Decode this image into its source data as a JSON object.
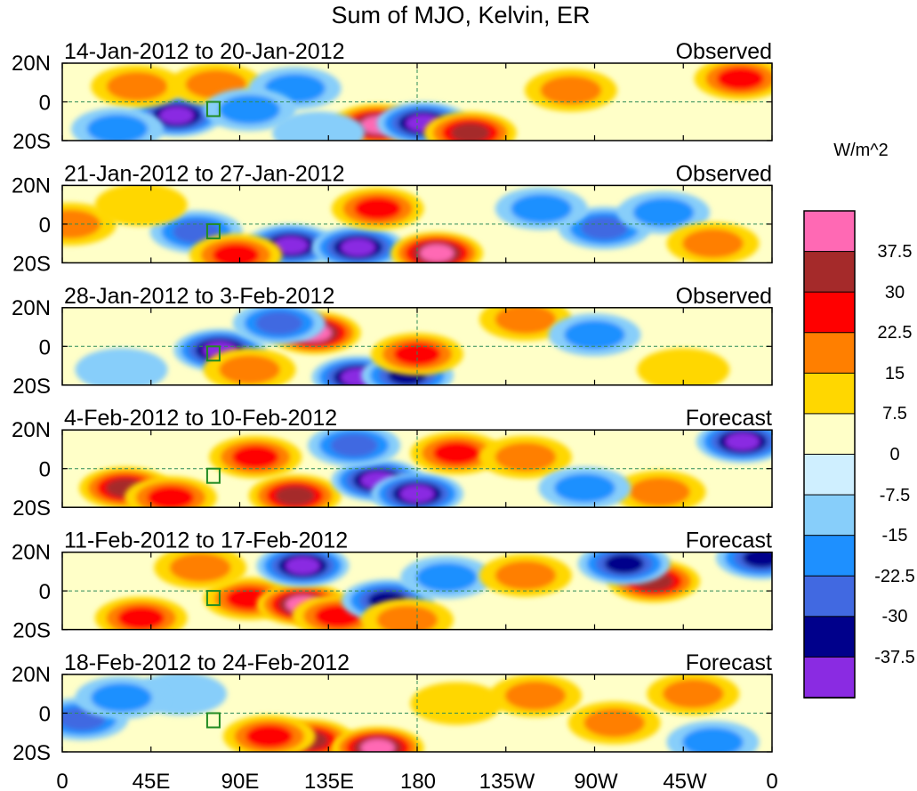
{
  "chart_data": {
    "type": "heatmap",
    "title": "Sum of MJO, Kelvin, ER",
    "colorbar": {
      "unit_label": "W/m^2",
      "levels": [
        -37.5,
        -30,
        -22.5,
        -15,
        -7.5,
        0,
        7.5,
        15,
        22.5,
        30,
        37.5
      ],
      "level_labels": [
        "-37.5",
        "-30",
        "-22.5",
        "-15",
        "-7.5",
        "0",
        "7.5",
        "15",
        "22.5",
        "30",
        "37.5"
      ],
      "colors": [
        "#8a2be2",
        "#00008b",
        "#4169e1",
        "#1e90ff",
        "#87cefa",
        "#cfefff",
        "#ffffc8",
        "#ffd700",
        "#ff7f00",
        "#ff0000",
        "#a52a2a",
        "#ff69b4"
      ]
    },
    "x_tick_labels": [
      "0",
      "45E",
      "90E",
      "135E",
      "180",
      "135W",
      "90W",
      "45W",
      "0"
    ],
    "y_tick_labels": [
      "20N",
      "0",
      "20S"
    ],
    "panels": [
      {
        "date_range": "14-Jan-2012 to 20-Jan-2012",
        "status": "Observed",
        "blobs": [
          {
            "lon": 58,
            "lat": -7,
            "value": -37.5
          },
          {
            "lon": 38,
            "lat": 8,
            "value": 15
          },
          {
            "lon": 78,
            "lat": 9,
            "value": 15
          },
          {
            "lon": 118,
            "lat": 7,
            "value": -15
          },
          {
            "lon": 160,
            "lat": -12,
            "value": 37.5
          },
          {
            "lon": 183,
            "lat": -11,
            "value": -37.5
          },
          {
            "lon": 207,
            "lat": -16,
            "value": 30
          },
          {
            "lon": 258,
            "lat": 6,
            "value": 15
          },
          {
            "lon": 344,
            "lat": 12,
            "value": 22.5
          },
          {
            "lon": 28,
            "lat": -14,
            "value": -15
          },
          {
            "lon": 95,
            "lat": -4,
            "value": -15
          },
          {
            "lon": 130,
            "lat": -16,
            "value": -7.5
          }
        ]
      },
      {
        "date_range": "21-Jan-2012 to 27-Jan-2012",
        "status": "Observed",
        "blobs": [
          {
            "lon": 68,
            "lat": -4,
            "value": -22.5
          },
          {
            "lon": 116,
            "lat": -11,
            "value": -37.5
          },
          {
            "lon": 150,
            "lat": -12,
            "value": -37.5
          },
          {
            "lon": 160,
            "lat": 8,
            "value": 22.5
          },
          {
            "lon": 190,
            "lat": -15,
            "value": 37.5
          },
          {
            "lon": 275,
            "lat": -2,
            "value": -22.5
          },
          {
            "lon": 305,
            "lat": 6,
            "value": -15
          },
          {
            "lon": 330,
            "lat": -10,
            "value": 15
          },
          {
            "lon": 4,
            "lat": 0,
            "value": 15
          },
          {
            "lon": 88,
            "lat": -16,
            "value": 22.5
          },
          {
            "lon": 243,
            "lat": 8,
            "value": -15
          },
          {
            "lon": 40,
            "lat": 10,
            "value": 7.5
          }
        ]
      },
      {
        "date_range": "28-Jan-2012 to 3-Feb-2012",
        "status": "Observed",
        "blobs": [
          {
            "lon": 80,
            "lat": -2,
            "value": -37.5
          },
          {
            "lon": 128,
            "lat": 7,
            "value": 37.5
          },
          {
            "lon": 150,
            "lat": -16,
            "value": -37.5
          },
          {
            "lon": 175,
            "lat": -15,
            "value": -30
          },
          {
            "lon": 180,
            "lat": -4,
            "value": 22.5
          },
          {
            "lon": 235,
            "lat": 14,
            "value": 15
          },
          {
            "lon": 95,
            "lat": -12,
            "value": 15
          },
          {
            "lon": 270,
            "lat": 6,
            "value": -15
          },
          {
            "lon": 30,
            "lat": -12,
            "value": -7.5
          },
          {
            "lon": 110,
            "lat": 12,
            "value": -22.5
          },
          {
            "lon": 315,
            "lat": -12,
            "value": 7.5
          }
        ]
      },
      {
        "date_range": "4-Feb-2012 to 10-Feb-2012",
        "status": "Forecast",
        "blobs": [
          {
            "lon": 32,
            "lat": -10,
            "value": 30
          },
          {
            "lon": 55,
            "lat": -15,
            "value": 22.5
          },
          {
            "lon": 98,
            "lat": 6,
            "value": 22.5
          },
          {
            "lon": 118,
            "lat": -14,
            "value": 30
          },
          {
            "lon": 160,
            "lat": -6,
            "value": -37.5
          },
          {
            "lon": 180,
            "lat": -13,
            "value": -37.5
          },
          {
            "lon": 148,
            "lat": 12,
            "value": -22.5
          },
          {
            "lon": 200,
            "lat": 8,
            "value": 22.5
          },
          {
            "lon": 235,
            "lat": 6,
            "value": 15
          },
          {
            "lon": 303,
            "lat": -12,
            "value": 15
          },
          {
            "lon": 345,
            "lat": 14,
            "value": -37.5
          },
          {
            "lon": 265,
            "lat": -10,
            "value": -15
          }
        ]
      },
      {
        "date_range": "11-Feb-2012 to 17-Feb-2012",
        "status": "Forecast",
        "blobs": [
          {
            "lon": 95,
            "lat": -4,
            "value": 22.5
          },
          {
            "lon": 122,
            "lat": -7,
            "value": 37.5
          },
          {
            "lon": 140,
            "lat": -13,
            "value": 22.5
          },
          {
            "lon": 40,
            "lat": -14,
            "value": 22.5
          },
          {
            "lon": 70,
            "lat": 12,
            "value": 15
          },
          {
            "lon": 122,
            "lat": 13,
            "value": -37.5
          },
          {
            "lon": 165,
            "lat": -5,
            "value": -30
          },
          {
            "lon": 195,
            "lat": 7,
            "value": -15
          },
          {
            "lon": 235,
            "lat": 8,
            "value": 15
          },
          {
            "lon": 300,
            "lat": 5,
            "value": 30
          },
          {
            "lon": 285,
            "lat": 14,
            "value": -30
          },
          {
            "lon": 355,
            "lat": 17,
            "value": -30
          },
          {
            "lon": 175,
            "lat": -15,
            "value": 15
          }
        ]
      },
      {
        "date_range": "18-Feb-2012 to 24-Feb-2012",
        "status": "Forecast",
        "blobs": [
          {
            "lon": 125,
            "lat": -14,
            "value": 30
          },
          {
            "lon": 160,
            "lat": -18,
            "value": 37.5
          },
          {
            "lon": 105,
            "lat": -12,
            "value": 22.5
          },
          {
            "lon": 10,
            "lat": -3,
            "value": -22.5
          },
          {
            "lon": 60,
            "lat": 10,
            "value": -7.5
          },
          {
            "lon": 200,
            "lat": 5,
            "value": 7.5
          },
          {
            "lon": 240,
            "lat": 9,
            "value": 15
          },
          {
            "lon": 280,
            "lat": -5,
            "value": 15
          },
          {
            "lon": 330,
            "lat": -15,
            "value": -15
          },
          {
            "lon": 30,
            "lat": 8,
            "value": -15
          },
          {
            "lon": 320,
            "lat": 10,
            "value": 15
          }
        ]
      }
    ]
  }
}
